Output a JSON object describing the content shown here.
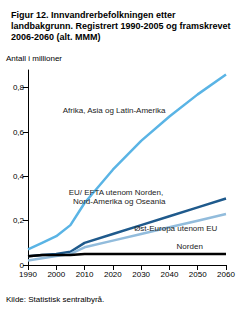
{
  "chart_data": {
    "type": "line",
    "title": "Figur 12. Innvandrerbefolkningen etter landbakgrunn. Registrert 1990-2005 og framskrevet 2006-2060 (alt. MMM)",
    "y_label": "Antall i millioner",
    "source": "Kilde: Statistisk sentralbyrå.",
    "x": [
      1990,
      1995,
      2000,
      2005,
      2010,
      2020,
      2030,
      2040,
      2050,
      2060
    ],
    "series": [
      {
        "name": "Afrika, Asia og Latin-Amerika",
        "color": "#5ab4e5",
        "values": [
          0.07,
          0.1,
          0.13,
          0.18,
          0.28,
          0.43,
          0.56,
          0.67,
          0.77,
          0.86
        ]
      },
      {
        "name": "EU/ EFTA utenom Norden, Nord-Amerika og Oseania",
        "color": "#1f5a8c",
        "values": [
          0.04,
          0.045,
          0.05,
          0.06,
          0.1,
          0.14,
          0.18,
          0.22,
          0.26,
          0.3
        ]
      },
      {
        "name": "Øst-Europa utenom EU",
        "color": "#92bcdc",
        "values": [
          0.02,
          0.03,
          0.04,
          0.05,
          0.08,
          0.11,
          0.14,
          0.17,
          0.2,
          0.23
        ]
      },
      {
        "name": "Norden",
        "color": "#000000",
        "values": [
          0.04,
          0.045,
          0.045,
          0.045,
          0.05,
          0.05,
          0.05,
          0.05,
          0.05,
          0.05
        ]
      }
    ],
    "xlim": [
      1990,
      2060
    ],
    "xticks": [
      1990,
      2000,
      2010,
      2020,
      2030,
      2040,
      2050,
      2060
    ],
    "ylim": [
      0,
      0.88
    ],
    "yticks": [
      0,
      {
        "value": 0.2,
        "label": "0,2"
      },
      {
        "value": 0.4,
        "label": "0,4"
      },
      {
        "value": 0.6,
        "label": "0,6"
      },
      {
        "value": 0.8,
        "label": "0,8"
      }
    ],
    "grid": false
  }
}
